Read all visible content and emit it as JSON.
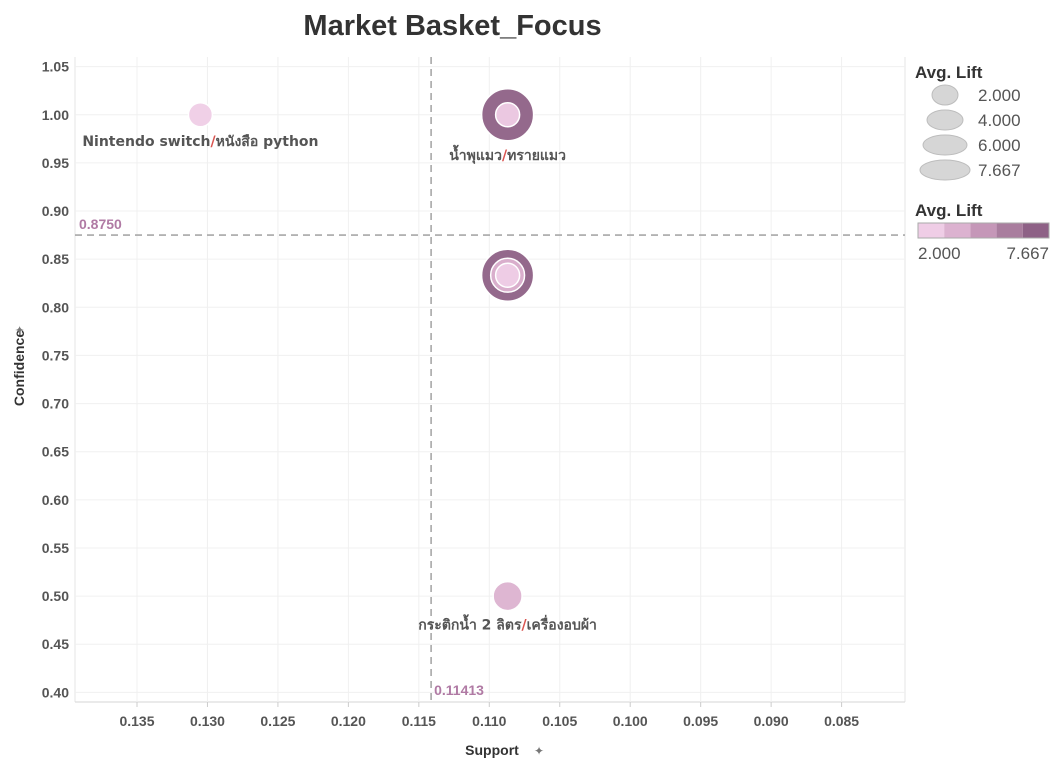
{
  "chart_data": {
    "type": "scatter",
    "title": "Market Basket_Focus",
    "xlabel": "Support",
    "ylabel": "Confidence",
    "x_reversed": true,
    "xlim": [
      0.1394,
      0.0805
    ],
    "ylim": [
      0.39,
      1.06
    ],
    "x_ticks": [
      "0.135",
      "0.130",
      "0.125",
      "0.120",
      "0.115",
      "0.110",
      "0.105",
      "0.100",
      "0.095",
      "0.090",
      "0.085"
    ],
    "y_ticks": [
      "1.05",
      "1.00",
      "0.95",
      "0.90",
      "0.85",
      "0.80",
      "0.75",
      "0.70",
      "0.65",
      "0.60",
      "0.55",
      "0.50",
      "0.45",
      "0.40"
    ],
    "grid": true,
    "reference_lines": [
      {
        "axis": "y",
        "value": 0.875,
        "label": "0.8750"
      },
      {
        "axis": "x",
        "value": 0.11413,
        "label": "0.11413"
      }
    ],
    "points": [
      {
        "label_left": "Nintendo switch",
        "separator": "/",
        "label_right": "หนังสือ python",
        "x": 0.1305,
        "y": 1.0,
        "lift": 2.0
      },
      {
        "label_left": "น้ำพุแมว",
        "separator": "/",
        "label_right": "ทรายแมว",
        "x": 0.1087,
        "y": 1.0,
        "lift": 7.667
      },
      {
        "label_left": "",
        "separator": "",
        "label_right": "",
        "x": 0.1087,
        "y": 1.0,
        "lift": 2.0
      },
      {
        "label_left": "",
        "separator": "",
        "label_right": "",
        "x": 0.1087,
        "y": 0.8333,
        "lift": 7.667
      },
      {
        "label_left": "",
        "separator": "",
        "label_right": "",
        "x": 0.1087,
        "y": 0.8333,
        "lift": 4.0
      },
      {
        "label_left": "",
        "separator": "",
        "label_right": "",
        "x": 0.1087,
        "y": 0.8333,
        "lift": 2.0
      },
      {
        "label_left": "กระติกน้ำ 2 ลิตร",
        "separator": "/",
        "label_right": "เครื่องอบผ้า",
        "x": 0.1087,
        "y": 0.5,
        "lift": 3.0
      }
    ],
    "legend_size": {
      "title": "Avg. Lift",
      "entries": [
        "2.000",
        "4.000",
        "6.000",
        "7.667"
      ],
      "values": [
        2.0,
        4.0,
        6.0,
        7.667
      ]
    },
    "legend_color": {
      "title": "Avg. Lift",
      "min_label": "2.000",
      "max_label": "7.667",
      "colors": [
        "#efcde6",
        "#dcb2d0",
        "#c597b8",
        "#a97d9e",
        "#8e6186"
      ]
    }
  }
}
